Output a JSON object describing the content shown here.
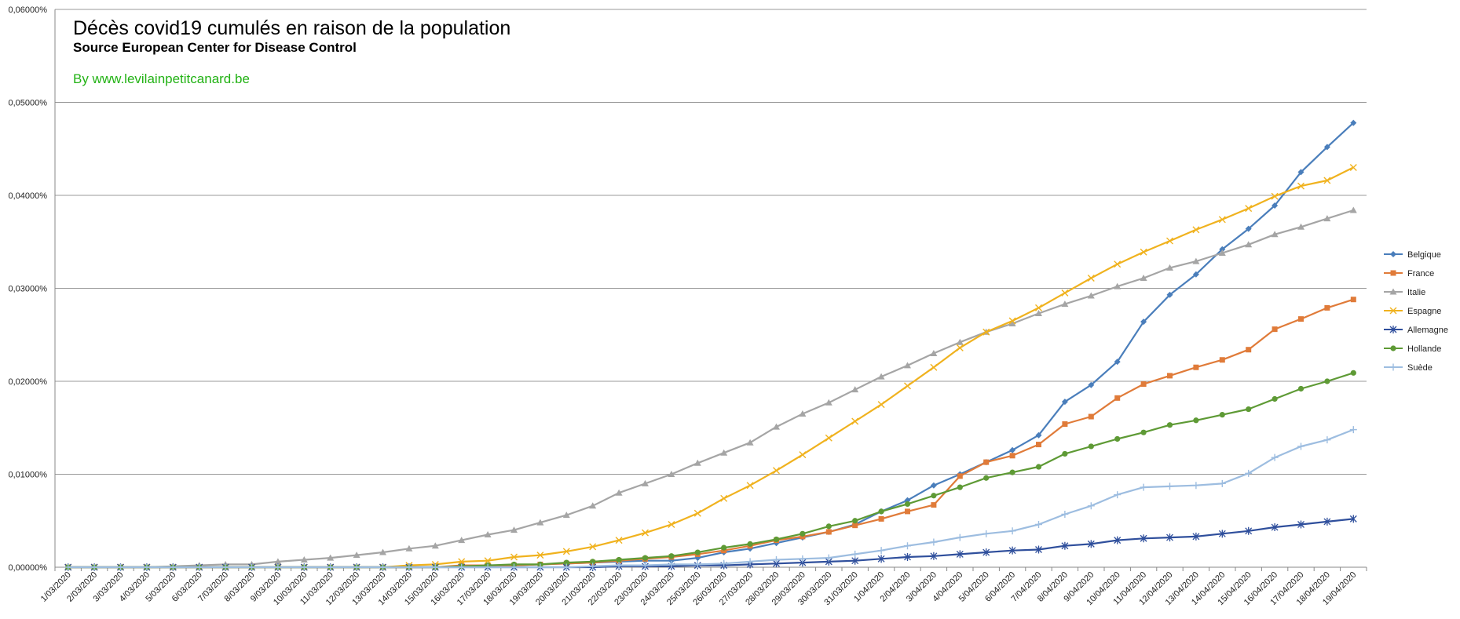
{
  "chart_data": {
    "type": "line",
    "title": "Décès covid19 cumulés en raison de la population",
    "subtitle": "Source European Center for Disease Control",
    "credit": "By www.levilainpetitcanard.be",
    "xlabel": "",
    "ylabel": "",
    "ylim": [
      0,
      0.0006
    ],
    "yticks": [
      "0,00000%",
      "0,01000%",
      "0,02000%",
      "0,03000%",
      "0,04000%",
      "0,05000%",
      "0,06000%"
    ],
    "grid": true,
    "legend_position": "right",
    "categories": [
      "1/03/2020",
      "2/03/2020",
      "3/03/2020",
      "4/03/2020",
      "5/03/2020",
      "6/03/2020",
      "7/03/2020",
      "8/03/2020",
      "9/03/2020",
      "10/03/2020",
      "11/03/2020",
      "12/03/2020",
      "13/03/2020",
      "14/03/2020",
      "15/03/2020",
      "16/03/2020",
      "17/03/2020",
      "18/03/2020",
      "19/03/2020",
      "20/03/2020",
      "21/03/2020",
      "22/03/2020",
      "23/03/2020",
      "24/03/2020",
      "25/03/2020",
      "26/03/2020",
      "27/03/2020",
      "28/03/2020",
      "29/03/2020",
      "30/03/2020",
      "31/03/2020",
      "1/04/2020",
      "2/04/2020",
      "3/04/2020",
      "4/04/2020",
      "5/04/2020",
      "6/04/2020",
      "7/04/2020",
      "8/04/2020",
      "9/04/2020",
      "10/04/2020",
      "11/04/2020",
      "12/04/2020",
      "13/04/2020",
      "14/04/2020",
      "15/04/2020",
      "16/04/2020",
      "17/04/2020",
      "18/04/2020",
      "19/04/2020"
    ],
    "series": [
      {
        "name": "Belgique",
        "color": "#4a7ebb",
        "marker": "diamond",
        "values": [
          0,
          0,
          0,
          0,
          0,
          0,
          0,
          0,
          0,
          0,
          0,
          0,
          0,
          0,
          0,
          1e-06,
          2e-06,
          2e-06,
          3e-06,
          4e-06,
          5e-06,
          6e-06,
          7e-06,
          7e-06,
          1e-05,
          1.6e-05,
          2e-05,
          2.6e-05,
          3.2e-05,
          3.8e-05,
          4.6e-05,
          6e-05,
          7.2e-05,
          8.8e-05,
          0.0001,
          0.000113,
          0.000126,
          0.000142,
          0.000178,
          0.000196,
          0.000221,
          0.000264,
          0.000293,
          0.000315,
          0.000342,
          0.000364,
          0.000389,
          0.000425,
          0.000452,
          0.000478
        ]
      },
      {
        "name": "France",
        "color": "#e07b39",
        "marker": "square",
        "values": [
          0,
          0,
          0,
          0,
          0,
          0,
          0,
          0,
          0,
          0,
          0,
          0,
          0,
          0,
          0,
          2e-06,
          2e-06,
          2e-06,
          3e-06,
          4e-06,
          5e-06,
          7e-06,
          9e-06,
          1.1e-05,
          1.4e-05,
          1.8e-05,
          2.3e-05,
          2.9e-05,
          3.3e-05,
          3.8e-05,
          4.5e-05,
          5.2e-05,
          6e-05,
          6.7e-05,
          9.8e-05,
          0.000113,
          0.00012,
          0.000132,
          0.000154,
          0.000162,
          0.000182,
          0.000197,
          0.000206,
          0.000215,
          0.000223,
          0.000234,
          0.000256,
          0.000267,
          0.000279,
          0.000288
        ]
      },
      {
        "name": "Italie",
        "color": "#a5a5a5",
        "marker": "triangle",
        "values": [
          0,
          0,
          0,
          0,
          1e-06,
          2e-06,
          3e-06,
          3e-06,
          6e-06,
          8e-06,
          1e-05,
          1.3e-05,
          1.6e-05,
          2e-05,
          2.3e-05,
          2.9e-05,
          3.5e-05,
          4e-05,
          4.8e-05,
          5.6e-05,
          6.6e-05,
          8e-05,
          9e-05,
          0.0001,
          0.000112,
          0.000123,
          0.000134,
          0.000151,
          0.000165,
          0.000177,
          0.000191,
          0.000205,
          0.000217,
          0.00023,
          0.000242,
          0.000253,
          0.000262,
          0.000273,
          0.000283,
          0.000292,
          0.000302,
          0.000311,
          0.000322,
          0.000329,
          0.000338,
          0.000347,
          0.000358,
          0.000366,
          0.000375,
          0.000384
        ]
      },
      {
        "name": "Espagne",
        "color": "#f0b21e",
        "marker": "x",
        "values": [
          0,
          0,
          0,
          0,
          0,
          0,
          0,
          0,
          0,
          0,
          0,
          0,
          0,
          2e-06,
          3e-06,
          6e-06,
          7e-06,
          1.1e-05,
          1.3e-05,
          1.7e-05,
          2.2e-05,
          2.9e-05,
          3.7e-05,
          4.6e-05,
          5.8e-05,
          7.4e-05,
          8.8e-05,
          0.000104,
          0.000121,
          0.000139,
          0.000157,
          0.000175,
          0.000195,
          0.000215,
          0.000236,
          0.000253,
          0.000265,
          0.000279,
          0.000295,
          0.000311,
          0.000326,
          0.000339,
          0.000351,
          0.000363,
          0.000374,
          0.000386,
          0.000399,
          0.00041,
          0.000416,
          0.00043
        ]
      },
      {
        "name": "Allemagne",
        "color": "#2f4f9c",
        "marker": "star",
        "values": [
          0,
          0,
          0,
          0,
          0,
          0,
          0,
          0,
          0,
          0,
          0,
          0,
          0,
          0,
          0,
          0,
          0,
          0,
          0,
          0,
          0,
          1e-06,
          1e-06,
          1e-06,
          2e-06,
          2e-06,
          3e-06,
          4e-06,
          5e-06,
          6e-06,
          7e-06,
          9e-06,
          1.1e-05,
          1.2e-05,
          1.4e-05,
          1.6e-05,
          1.8e-05,
          1.9e-05,
          2.3e-05,
          2.5e-05,
          2.9e-05,
          3.1e-05,
          3.2e-05,
          3.3e-05,
          3.6e-05,
          3.9e-05,
          4.3e-05,
          4.6e-05,
          4.9e-05,
          5.2e-05
        ]
      },
      {
        "name": "Hollande",
        "color": "#5e9a35",
        "marker": "circle",
        "values": [
          0,
          0,
          0,
          0,
          0,
          0,
          0,
          0,
          0,
          0,
          0,
          0,
          0,
          0,
          0,
          1e-06,
          2e-06,
          3e-06,
          3e-06,
          5e-06,
          6e-06,
          8e-06,
          1e-05,
          1.2e-05,
          1.6e-05,
          2.1e-05,
          2.5e-05,
          3e-05,
          3.6e-05,
          4.4e-05,
          5e-05,
          6e-05,
          6.8e-05,
          7.7e-05,
          8.6e-05,
          9.6e-05,
          0.000102,
          0.000108,
          0.000122,
          0.00013,
          0.000138,
          0.000145,
          0.000153,
          0.000158,
          0.000164,
          0.00017,
          0.000181,
          0.000192,
          0.0002,
          0.000209
        ]
      },
      {
        "name": "Suède",
        "color": "#9dbde0",
        "marker": "plus",
        "values": [
          0,
          0,
          0,
          0,
          0,
          0,
          0,
          0,
          0,
          0,
          0,
          0,
          0,
          0,
          0,
          0,
          0,
          0,
          0,
          0,
          1e-06,
          2e-06,
          2e-06,
          3e-06,
          3e-06,
          4e-06,
          6e-06,
          8e-06,
          9e-06,
          1e-05,
          1.4e-05,
          1.8e-05,
          2.3e-05,
          2.7e-05,
          3.2e-05,
          3.6e-05,
          3.9e-05,
          4.6e-05,
          5.7e-05,
          6.6e-05,
          7.8e-05,
          8.6e-05,
          8.7e-05,
          8.8e-05,
          9e-05,
          0.000101,
          0.000118,
          0.00013,
          0.000137,
          0.000148
        ]
      }
    ]
  }
}
